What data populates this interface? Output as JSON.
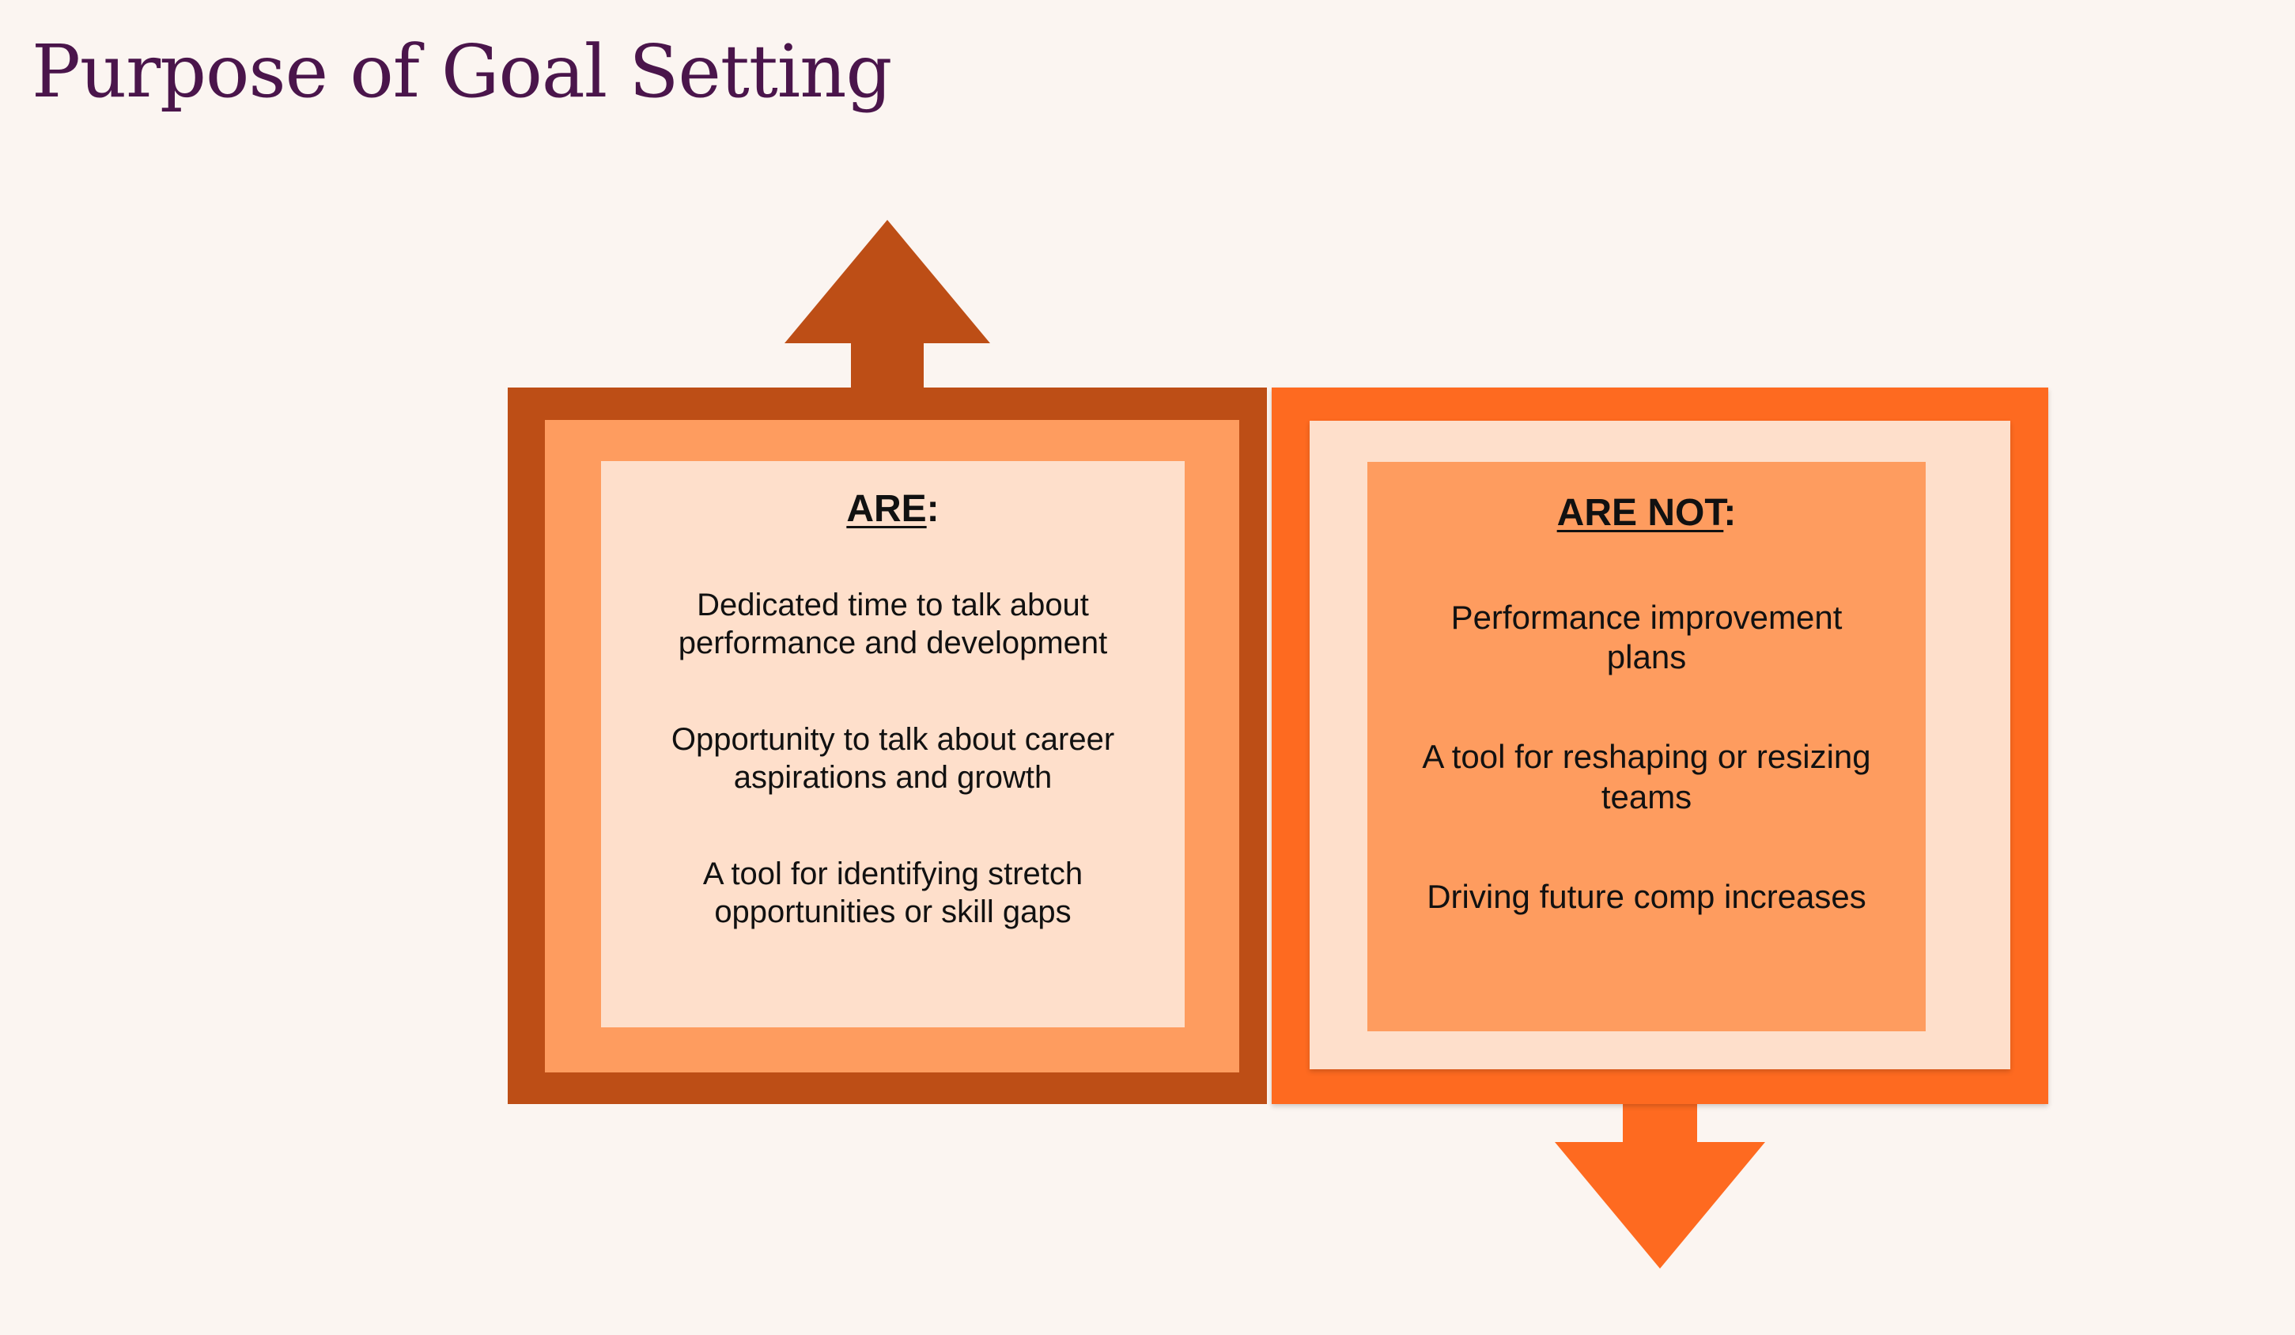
{
  "slide": {
    "title": "Purpose of Goal Setting"
  },
  "colors": {
    "background": "#fbf5f1",
    "title": "#4a154b",
    "left_outer": "#bd4e16",
    "left_frame": "#fe9c5f",
    "left_card": "#fedfcb",
    "right_outer": "#fe6a20",
    "right_frame": "#fedfcb",
    "right_card": "#fe9c5f"
  },
  "are": {
    "heading": "ARE",
    "heading_suffix": ":",
    "items": [
      "Dedicated time to talk about performance and development",
      "Opportunity to talk about career aspirations and growth",
      "A tool for identifying stretch opportunities or skill gaps"
    ]
  },
  "are_not": {
    "heading": "ARE NOT",
    "heading_suffix": ":",
    "items": [
      "Performance improvement plans",
      "A tool for reshaping or resizing teams",
      "Driving future comp increases"
    ]
  },
  "arrows": {
    "up": "arrow-up-icon",
    "down": "arrow-down-icon"
  }
}
